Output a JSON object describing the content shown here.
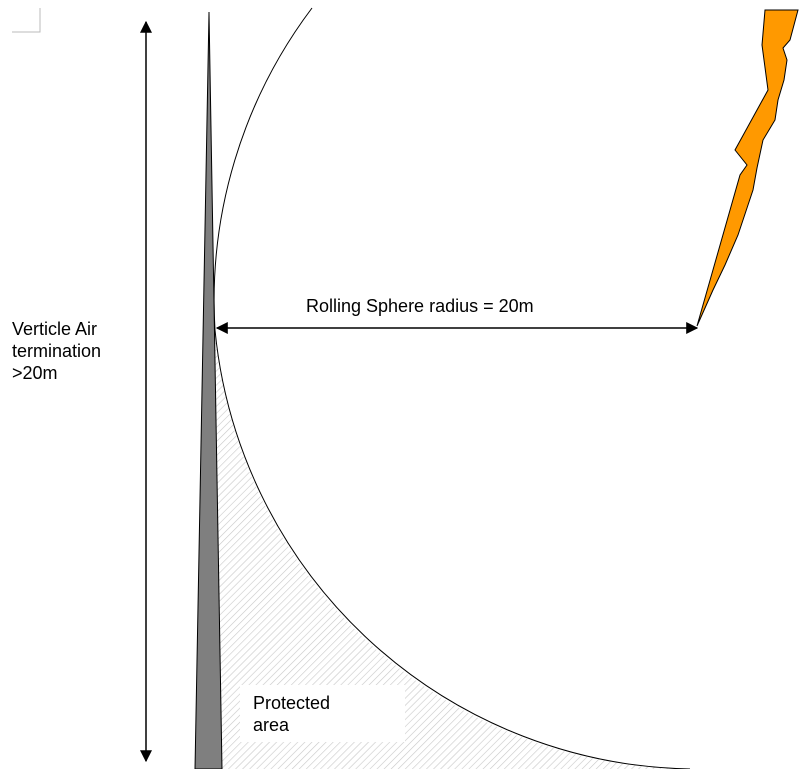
{
  "labels": {
    "height": [
      "Verticle Air",
      "termination",
      ">20m"
    ],
    "radius": "Rolling Sphere radius = 20m",
    "protected": [
      "Protected",
      "area"
    ]
  },
  "colors": {
    "background": "#ffffff",
    "line": "#000000",
    "air_termination": "#7f7f7f",
    "lightning_bolt": "#ff9900",
    "hatch": "#c8c8c8"
  },
  "icons": {
    "corner_mark": "corner-crop-mark",
    "lightning": "lightning-bolt"
  }
}
